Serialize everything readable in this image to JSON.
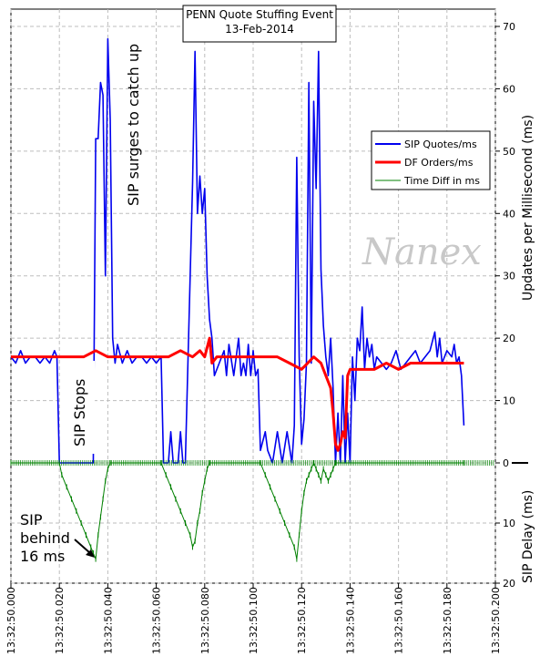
{
  "chart_data": {
    "type": "line",
    "title": "PENN Quote Stuffing Event",
    "subtitle": "13-Feb-2014",
    "watermark": "Nanex",
    "ylabel_right_top": "Updates per Millisecond (ms)",
    "ylabel_right_bottom": "SIP Delay (ms)",
    "x_range": [
      "13:32:50.000",
      "13:32:50.200"
    ],
    "ylim_top": [
      0,
      70
    ],
    "ylim_bottom": [
      0,
      20
    ],
    "x_ticks": [
      "13:32:50.000",
      "13:32:50.020",
      "13:32:50.040",
      "13:32:50.060",
      "13:32:50.080",
      "13:32:50.100",
      "13:32:50.120",
      "13:32:50.140",
      "13:32:50.160",
      "13:32:50.180",
      "13:32:50.200"
    ],
    "y_ticks_top": [
      "0",
      "10",
      "20",
      "30",
      "40",
      "50",
      "60",
      "70"
    ],
    "y_ticks_bottom": [
      "10",
      "20"
    ],
    "grid": true,
    "legend_position": "top-right",
    "annotations": {
      "surge": "SIP surges to catch up",
      "stops": "SIP Stops",
      "behind": [
        "SIP",
        "behind",
        "16 ms"
      ]
    },
    "series": [
      {
        "name": "SIP Quotes/ms",
        "color": "#0000ee",
        "axis": "top",
        "points": [
          [
            0,
            17
          ],
          [
            2,
            16
          ],
          [
            4,
            18
          ],
          [
            6,
            16
          ],
          [
            8,
            17
          ],
          [
            10,
            17
          ],
          [
            12,
            16
          ],
          [
            14,
            17
          ],
          [
            16,
            16
          ],
          [
            18,
            18
          ],
          [
            19,
            17
          ],
          [
            20,
            0
          ],
          [
            34,
            0
          ],
          [
            35,
            52
          ],
          [
            36,
            52
          ],
          [
            37,
            61
          ],
          [
            38,
            59
          ],
          [
            39,
            30
          ],
          [
            40,
            68
          ],
          [
            41,
            55
          ],
          [
            42,
            20
          ],
          [
            43,
            16
          ],
          [
            44,
            19
          ],
          [
            46,
            16
          ],
          [
            48,
            18
          ],
          [
            50,
            16
          ],
          [
            52,
            17
          ],
          [
            54,
            17
          ],
          [
            56,
            16
          ],
          [
            58,
            17
          ],
          [
            60,
            16
          ],
          [
            62,
            17
          ],
          [
            63,
            0
          ],
          [
            65,
            0
          ],
          [
            66,
            5
          ],
          [
            67,
            0
          ],
          [
            69,
            0
          ],
          [
            70,
            5
          ],
          [
            71,
            0
          ],
          [
            72,
            0
          ],
          [
            73,
            15
          ],
          [
            74,
            30
          ],
          [
            75,
            45
          ],
          [
            76,
            66
          ],
          [
            77,
            40
          ],
          [
            78,
            46
          ],
          [
            79,
            40
          ],
          [
            80,
            44
          ],
          [
            81,
            30
          ],
          [
            82,
            23
          ],
          [
            83,
            20
          ],
          [
            84,
            14
          ],
          [
            86,
            16
          ],
          [
            88,
            18
          ],
          [
            89,
            14
          ],
          [
            90,
            19
          ],
          [
            92,
            14
          ],
          [
            94,
            20
          ],
          [
            95,
            14
          ],
          [
            96,
            16
          ],
          [
            97,
            14
          ],
          [
            98,
            19
          ],
          [
            99,
            14
          ],
          [
            100,
            18
          ],
          [
            101,
            14
          ],
          [
            102,
            15
          ],
          [
            103,
            2
          ],
          [
            105,
            5
          ],
          [
            106,
            2
          ],
          [
            108,
            0
          ],
          [
            110,
            5
          ],
          [
            112,
            0
          ],
          [
            114,
            5
          ],
          [
            116,
            0
          ],
          [
            117,
            6
          ],
          [
            118,
            49
          ],
          [
            119,
            17
          ],
          [
            120,
            3
          ],
          [
            121,
            7
          ],
          [
            122,
            16
          ],
          [
            123,
            61
          ],
          [
            124,
            16
          ],
          [
            125,
            58
          ],
          [
            126,
            44
          ],
          [
            127,
            66
          ],
          [
            128,
            31
          ],
          [
            129,
            22
          ],
          [
            130,
            17
          ],
          [
            131,
            14
          ],
          [
            132,
            20
          ],
          [
            133,
            12
          ],
          [
            134,
            0
          ],
          [
            135,
            8
          ],
          [
            136,
            0
          ],
          [
            137,
            14
          ],
          [
            138,
            0
          ],
          [
            139,
            8
          ],
          [
            140,
            0
          ],
          [
            141,
            17
          ],
          [
            142,
            10
          ],
          [
            143,
            20
          ],
          [
            144,
            18
          ],
          [
            145,
            25
          ],
          [
            146,
            15
          ],
          [
            147,
            20
          ],
          [
            148,
            17
          ],
          [
            149,
            19
          ],
          [
            150,
            15
          ],
          [
            151,
            17
          ],
          [
            153,
            16
          ],
          [
            155,
            15
          ],
          [
            157,
            16
          ],
          [
            159,
            18
          ],
          [
            161,
            15
          ],
          [
            163,
            16
          ],
          [
            165,
            17
          ],
          [
            167,
            18
          ],
          [
            169,
            16
          ],
          [
            171,
            17
          ],
          [
            173,
            18
          ],
          [
            175,
            21
          ],
          [
            176,
            17
          ],
          [
            177,
            20
          ],
          [
            178,
            16
          ],
          [
            180,
            18
          ],
          [
            182,
            17
          ],
          [
            183,
            19
          ],
          [
            184,
            16
          ],
          [
            185,
            17
          ],
          [
            186,
            14
          ],
          [
            187,
            6
          ]
        ]
      },
      {
        "name": "DF Orders/ms",
        "color": "#ff0000",
        "axis": "top",
        "points": [
          [
            0,
            17
          ],
          [
            5,
            17
          ],
          [
            10,
            17
          ],
          [
            15,
            17
          ],
          [
            20,
            17
          ],
          [
            25,
            17
          ],
          [
            30,
            17
          ],
          [
            35,
            18
          ],
          [
            40,
            17
          ],
          [
            45,
            17
          ],
          [
            50,
            17
          ],
          [
            55,
            17
          ],
          [
            60,
            17
          ],
          [
            65,
            17
          ],
          [
            70,
            18
          ],
          [
            75,
            17
          ],
          [
            78,
            18
          ],
          [
            80,
            17
          ],
          [
            82,
            20
          ],
          [
            83,
            16
          ],
          [
            85,
            17
          ],
          [
            90,
            17
          ],
          [
            95,
            17
          ],
          [
            100,
            17
          ],
          [
            105,
            17
          ],
          [
            110,
            17
          ],
          [
            115,
            16
          ],
          [
            120,
            15
          ],
          [
            125,
            17
          ],
          [
            128,
            16
          ],
          [
            130,
            14
          ],
          [
            132,
            12
          ],
          [
            133,
            8
          ],
          [
            134,
            3
          ],
          [
            135,
            2
          ],
          [
            136,
            3
          ],
          [
            137,
            5
          ],
          [
            138,
            4
          ],
          [
            139,
            14
          ],
          [
            140,
            15
          ],
          [
            145,
            15
          ],
          [
            150,
            15
          ],
          [
            155,
            16
          ],
          [
            160,
            15
          ],
          [
            165,
            16
          ],
          [
            170,
            16
          ],
          [
            175,
            16
          ],
          [
            180,
            16
          ],
          [
            185,
            16
          ],
          [
            187,
            16
          ]
        ]
      },
      {
        "name": "Time Diff in ms",
        "color": "#008000",
        "axis": "bottom",
        "points": [
          [
            0,
            0
          ],
          [
            20,
            0
          ],
          [
            21,
            2
          ],
          [
            23,
            4
          ],
          [
            25,
            6
          ],
          [
            27,
            8
          ],
          [
            29,
            10
          ],
          [
            31,
            12
          ],
          [
            33,
            14
          ],
          [
            34,
            15
          ],
          [
            35,
            16
          ],
          [
            36,
            12
          ],
          [
            37,
            9
          ],
          [
            38,
            6
          ],
          [
            39,
            3
          ],
          [
            40,
            1
          ],
          [
            41,
            0
          ],
          [
            62,
            0
          ],
          [
            64,
            2
          ],
          [
            66,
            4
          ],
          [
            68,
            6
          ],
          [
            70,
            8
          ],
          [
            72,
            10
          ],
          [
            74,
            12
          ],
          [
            75,
            14
          ],
          [
            76,
            13
          ],
          [
            77,
            10
          ],
          [
            78,
            8
          ],
          [
            79,
            5
          ],
          [
            80,
            3
          ],
          [
            81,
            1
          ],
          [
            82,
            0
          ],
          [
            103,
            0
          ],
          [
            105,
            2
          ],
          [
            107,
            4
          ],
          [
            109,
            6
          ],
          [
            111,
            8
          ],
          [
            113,
            10
          ],
          [
            115,
            12
          ],
          [
            117,
            14
          ],
          [
            118,
            16
          ],
          [
            119,
            12
          ],
          [
            120,
            8
          ],
          [
            121,
            5
          ],
          [
            122,
            3
          ],
          [
            123,
            2
          ],
          [
            124,
            1
          ],
          [
            125,
            0
          ],
          [
            126,
            1
          ],
          [
            127,
            2
          ],
          [
            128,
            3
          ],
          [
            129,
            1
          ],
          [
            130,
            2
          ],
          [
            131,
            3
          ],
          [
            132,
            2
          ],
          [
            133,
            1
          ],
          [
            134,
            0
          ],
          [
            187,
            0
          ]
        ]
      }
    ]
  }
}
